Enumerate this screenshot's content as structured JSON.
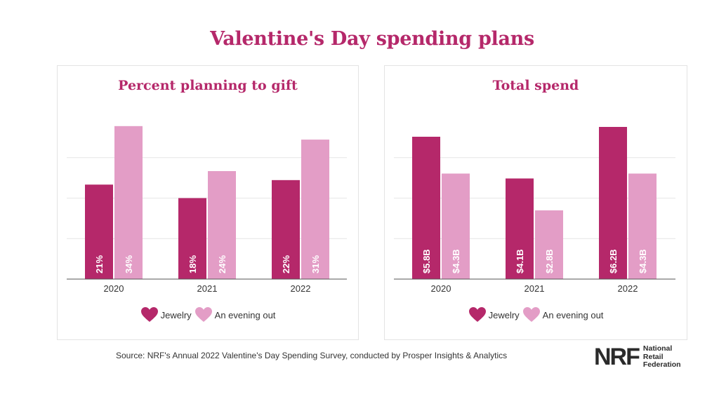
{
  "title": "Valentine's Day spending plans",
  "legend": {
    "series_a": "Jewelry",
    "series_b": "An evening out"
  },
  "colors": {
    "jewelry": "#b5286a",
    "evening": "#e39dc6",
    "title": "#b5286a",
    "axis": "#555555",
    "grid": "#e6e6e6",
    "bar_text": "#ffffff"
  },
  "source": "Source: NRF's Annual 2022 Valentine's Day Spending Survey, conducted by Prosper Insights & Analytics",
  "logo": {
    "mark": "NRF",
    "line1": "National",
    "line2": "Retail",
    "line3": "Federation"
  },
  "chart_data": [
    {
      "type": "bar",
      "title": "Percent planning to gift",
      "categories": [
        "2020",
        "2021",
        "2022"
      ],
      "series": [
        {
          "name": "Jewelry",
          "values": [
            21,
            18,
            22
          ],
          "labels": [
            "21%",
            "18%",
            "22%"
          ]
        },
        {
          "name": "An evening out",
          "values": [
            34,
            24,
            31
          ],
          "labels": [
            "34%",
            "24%",
            "31%"
          ]
        }
      ],
      "ylim": [
        0,
        36
      ],
      "unit": "%"
    },
    {
      "type": "bar",
      "title": "Total spend",
      "categories": [
        "2020",
        "2021",
        "2022"
      ],
      "series": [
        {
          "name": "Jewelry",
          "values": [
            5.8,
            4.1,
            6.2
          ],
          "labels": [
            "$5.8B",
            "$4.1B",
            "$6.2B"
          ]
        },
        {
          "name": "An evening out",
          "values": [
            4.3,
            2.8,
            4.3
          ],
          "labels": [
            "$4.3B",
            "$2.8B",
            "$4.3B"
          ]
        }
      ],
      "ylim": [
        0,
        6.6
      ],
      "unit": "$B"
    }
  ]
}
